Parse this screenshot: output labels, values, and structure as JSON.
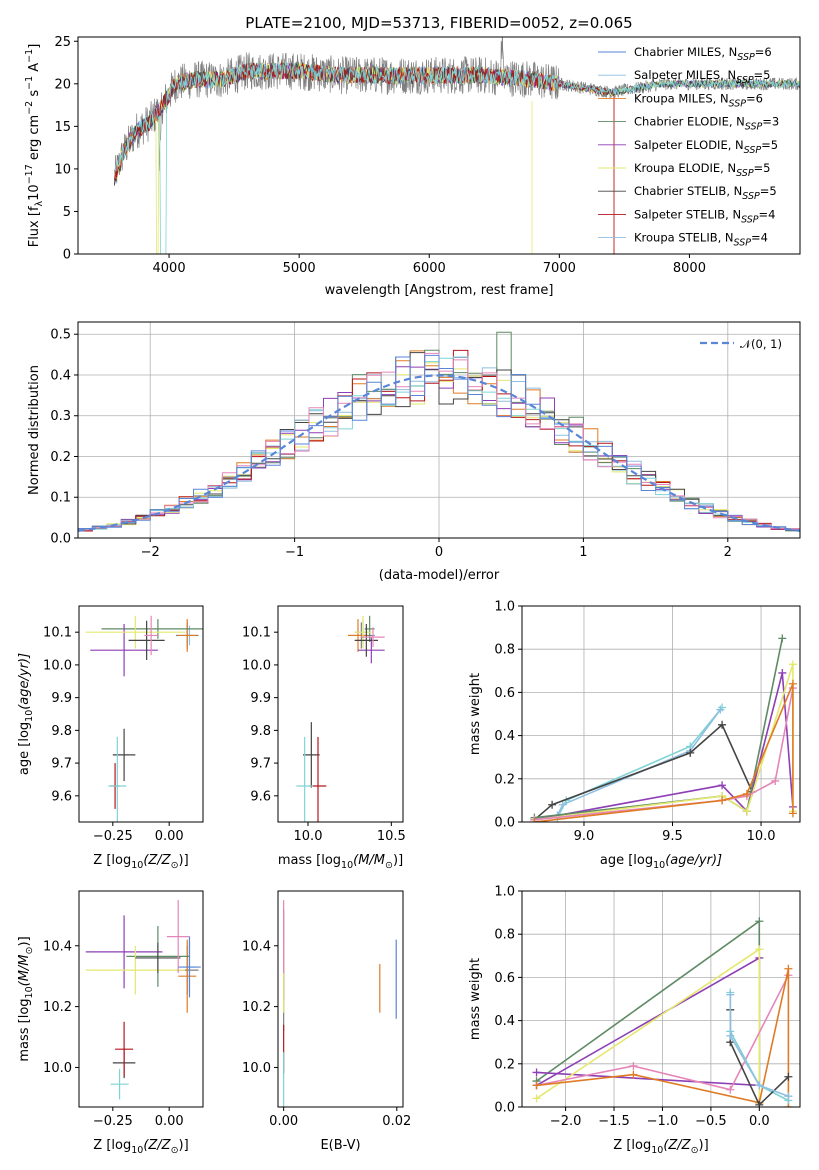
{
  "colors": [
    "#7f7f7f",
    "#8fbfe0",
    "#e07b25",
    "#5e8a64",
    "#8e3fb5",
    "#e5e86f",
    "#444444",
    "#b5171e",
    "#7fd3d6",
    "#e586b9",
    "#5a86d8"
  ],
  "chart_data": [
    {
      "id": "spectrum",
      "type": "line",
      "title": "PLATE=2100, MJD=53713, FIBERID=0052, z=0.065",
      "xlabel": "wavelength [Angstrom, rest frame]",
      "ylabel": "Flux [f",
      "ylabel_sub": "λ",
      "ylabel_mid": "10",
      "ylabel_sup1": "−17",
      "ylabel_rest": " erg cm",
      "ylabel_sup2": "−2",
      "ylabel_rest2": " s",
      "ylabel_sup3": "−1",
      "ylabel_rest3": " A",
      "ylabel_sup4": "−1",
      "ylabel_end": "]",
      "xlim": [
        3300,
        8850
      ],
      "ylim": [
        0,
        25.5
      ],
      "xticks": [
        4000,
        5000,
        6000,
        7000,
        8000
      ],
      "yticks": [
        0,
        5,
        10,
        15,
        20,
        25
      ],
      "grid": false,
      "legend_position": "upper right",
      "series": [
        {
          "name": "Chabrier MILES, N",
          "sub": "SSP",
          "eq": "=6"
        },
        {
          "name": "Salpeter MILES, N",
          "sub": "SSP",
          "eq": "=5"
        },
        {
          "name": "Kroupa MILES, N",
          "sub": "SSP",
          "eq": "=6"
        },
        {
          "name": "Chabrier ELODIE, N",
          "sub": "SSP",
          "eq": "=3"
        },
        {
          "name": "Salpeter ELODIE, N",
          "sub": "SSP",
          "eq": "=5"
        },
        {
          "name": "Kroupa ELODIE, N",
          "sub": "SSP",
          "eq": "=5"
        },
        {
          "name": "Chabrier STELIB, N",
          "sub": "SSP",
          "eq": "=5"
        },
        {
          "name": "Salpeter STELIB, N",
          "sub": "SSP",
          "eq": "=4"
        },
        {
          "name": "Kroupa STELIB, N",
          "sub": "SSP",
          "eq": "=4"
        }
      ],
      "continuum": {
        "x": [
          3580,
          3650,
          3750,
          3850,
          3950,
          4050,
          4200,
          4400,
          4600,
          4800,
          5000,
          5300,
          5600,
          6000,
          6400,
          6800,
          7000,
          7200,
          7400,
          7600,
          7800,
          8000,
          8200,
          8400,
          8600,
          8850
        ],
        "y": [
          9,
          12,
          14.5,
          15.5,
          17.5,
          20,
          20.5,
          20.5,
          21.5,
          21.5,
          21.5,
          21,
          21,
          21,
          21,
          20.5,
          20,
          19.5,
          19,
          19.5,
          20,
          20,
          20,
          20,
          20,
          20
        ]
      }
    },
    {
      "id": "residuals",
      "type": "histogram",
      "xlabel": "(data-model)/error",
      "ylabel": "Normed distribution",
      "xlim": [
        -2.5,
        2.5
      ],
      "ylim": [
        0,
        0.53
      ],
      "xticks": [
        -2,
        -1,
        0,
        1,
        2
      ],
      "xtick_labels": [
        "−2",
        "−1",
        "0",
        "1",
        "2"
      ],
      "yticks": [
        0.0,
        0.1,
        0.2,
        0.3,
        0.4,
        0.5
      ],
      "ytick_labels": [
        "0.0",
        "0.1",
        "0.2",
        "0.3",
        "0.4",
        "0.5"
      ],
      "grid": true,
      "legend_label": "𝒩(0, 1)",
      "legend_position": "upper right",
      "bin_edges_start": -2.5,
      "bin_width": 0.1
    },
    {
      "id": "age_vs_z",
      "type": "scatter",
      "xlabel": "Z [log",
      "xlabel_sub": "10",
      "xlabel_rest": "(Z/Z",
      "xlabel_sub2": "⊙",
      "xlabel_end": ")]",
      "ylabel": "age  [log",
      "ylabel_sub": "10",
      "ylabel_rest": "(age/yr)]",
      "xlim": [
        -0.4,
        0.15
      ],
      "ylim": [
        9.52,
        10.18
      ],
      "xticks": [
        -0.25,
        0.0
      ],
      "xtick_labels": [
        "−0.25",
        "0.00"
      ],
      "yticks": [
        9.6,
        9.7,
        9.8,
        9.9,
        10.0,
        10.1
      ],
      "ytick_labels": [
        "9.6",
        "9.7",
        "9.8",
        "9.9",
        "10.0",
        "10.1"
      ],
      "points": [
        {
          "x": 0.08,
          "y": 10.09,
          "xe": 0.05,
          "ye": 0.04,
          "c": 0
        },
        {
          "x": 0.09,
          "y": 10.09,
          "xe": 0.02,
          "ye": 0.03,
          "c": 1
        },
        {
          "x": 0.08,
          "y": 10.09,
          "xe": 0.04,
          "ye": 0.05,
          "c": 2
        },
        {
          "x": -0.05,
          "y": 10.11,
          "xe": 0.25,
          "ye": 0.03,
          "c": 3
        },
        {
          "x": -0.2,
          "y": 10.045,
          "xe": 0.15,
          "ye": 0.08,
          "c": 4
        },
        {
          "x": -0.15,
          "y": 10.1,
          "xe": 0.22,
          "ye": 0.05,
          "c": 5
        },
        {
          "x": -0.2,
          "y": 9.725,
          "xe": 0.05,
          "ye": 0.08,
          "c": 6
        },
        {
          "x": -0.24,
          "y": 9.63,
          "xe": 0.02,
          "ye": 0.07,
          "c": 7
        },
        {
          "x": -0.23,
          "y": 9.63,
          "xe": 0.04,
          "ye": 0.15,
          "c": 8
        },
        {
          "x": -0.1,
          "y": 10.075,
          "xe": 0.08,
          "ye": 0.06,
          "c": 6
        },
        {
          "x": -0.08,
          "y": 10.09,
          "xe": 0.03,
          "ye": 0.06,
          "c": 9
        }
      ]
    },
    {
      "id": "age_vs_mass",
      "type": "scatter",
      "xlabel": "mass [log",
      "xlabel_sub": "10",
      "xlabel_rest": "(M/M",
      "xlabel_sub2": "⊙",
      "xlabel_end": ")]",
      "xlim": [
        9.82,
        10.57
      ],
      "ylim": [
        9.52,
        10.18
      ],
      "xticks": [
        10.0,
        10.5
      ],
      "xtick_labels": [
        "10.0",
        "10.5"
      ],
      "yticks": [
        9.6,
        9.7,
        9.8,
        9.9,
        10.0,
        10.1
      ],
      "ytick_labels": [
        "9.6",
        "9.7",
        "9.8",
        "9.9",
        "10.0",
        "10.1"
      ],
      "points": [
        {
          "x": 10.32,
          "y": 10.09,
          "xe": 0.08,
          "ye": 0.04,
          "c": 0
        },
        {
          "x": 10.33,
          "y": 10.1,
          "xe": 0.05,
          "ye": 0.04,
          "c": 1
        },
        {
          "x": 10.3,
          "y": 10.09,
          "xe": 0.06,
          "ye": 0.05,
          "c": 2
        },
        {
          "x": 10.37,
          "y": 10.11,
          "xe": 0.03,
          "ye": 0.04,
          "c": 3
        },
        {
          "x": 10.38,
          "y": 10.045,
          "xe": 0.08,
          "ye": 0.04,
          "c": 4
        },
        {
          "x": 10.33,
          "y": 10.1,
          "xe": 0.05,
          "ye": 0.05,
          "c": 5
        },
        {
          "x": 10.02,
          "y": 9.725,
          "xe": 0.05,
          "ye": 0.1,
          "c": 6
        },
        {
          "x": 10.06,
          "y": 9.63,
          "xe": 0.05,
          "ye": 0.15,
          "c": 7
        },
        {
          "x": 9.98,
          "y": 9.63,
          "xe": 0.05,
          "ye": 0.15,
          "c": 8
        },
        {
          "x": 10.35,
          "y": 10.075,
          "xe": 0.07,
          "ye": 0.05,
          "c": 6
        },
        {
          "x": 10.39,
          "y": 10.085,
          "xe": 0.07,
          "ye": 0.03,
          "c": 9
        }
      ]
    },
    {
      "id": "weight_vs_age",
      "type": "line",
      "xlabel": "age  [log",
      "xlabel_sub": "10",
      "xlabel_rest": "(age/yr)]",
      "ylabel": "mass weight",
      "xlim": [
        8.65,
        10.22
      ],
      "ylim": [
        0,
        1.0
      ],
      "xticks": [
        9.0,
        9.5,
        10.0
      ],
      "xtick_labels": [
        "9.0",
        "9.5",
        "10.0"
      ],
      "yticks": [
        0.0,
        0.2,
        0.4,
        0.6,
        0.8,
        1.0
      ],
      "ytick_labels": [
        "0.0",
        "0.2",
        "0.4",
        "0.6",
        "0.8",
        "1.0"
      ],
      "grid": true,
      "series": [
        {
          "c": 8,
          "x": [
            8.85,
            8.9,
            9.6,
            9.78
          ],
          "y": [
            0.02,
            0.1,
            0.35,
            0.53
          ]
        },
        {
          "c": 1,
          "x": [
            8.85,
            8.88,
            9.6,
            9.77
          ],
          "y": [
            0.03,
            0.08,
            0.33,
            0.52
          ]
        },
        {
          "c": 6,
          "x": [
            8.72,
            8.82,
            9.6,
            9.78,
            9.95
          ],
          "y": [
            0.01,
            0.08,
            0.32,
            0.45,
            0.14
          ]
        },
        {
          "c": 4,
          "x": [
            8.72,
            9.78,
            9.92,
            10.12,
            10.18
          ],
          "y": [
            0.01,
            0.17,
            0.05,
            0.69,
            0.07
          ]
        },
        {
          "c": 3,
          "x": [
            8.72,
            9.78,
            9.92,
            10.12
          ],
          "y": [
            0.02,
            0.12,
            0.05,
            0.85
          ]
        },
        {
          "c": 5,
          "x": [
            8.72,
            9.78,
            9.92,
            10.18,
            10.18
          ],
          "y": [
            0.01,
            0.12,
            0.05,
            0.73,
            0.05
          ]
        },
        {
          "c": 9,
          "x": [
            8.72,
            9.78,
            9.92,
            10.08,
            10.18
          ],
          "y": [
            0.01,
            0.1,
            0.12,
            0.19,
            0.62
          ]
        },
        {
          "c": 2,
          "x": [
            8.72,
            9.78,
            9.92,
            10.18,
            10.18
          ],
          "y": [
            0.0,
            0.1,
            0.13,
            0.64,
            0.04
          ]
        }
      ]
    },
    {
      "id": "mass_vs_z",
      "type": "scatter",
      "xlabel": "Z [log",
      "xlabel_sub": "10",
      "xlabel_rest": "(Z/Z",
      "xlabel_sub2": "⊙",
      "xlabel_end": ")]",
      "ylabel": "mass [log",
      "ylabel_sub": "10",
      "ylabel_rest": "(M/M",
      "ylabel_sub2": "⊙",
      "ylabel_end": ")]",
      "xlim": [
        -0.4,
        0.15
      ],
      "ylim": [
        9.87,
        10.58
      ],
      "xticks": [
        -0.25,
        0.0
      ],
      "xtick_labels": [
        "−0.25",
        "0.00"
      ],
      "yticks": [
        10.0,
        10.2,
        10.4
      ],
      "ytick_labels": [
        "10.0",
        "10.2",
        "10.4"
      ],
      "points": [
        {
          "x": 0.08,
          "y": 10.32,
          "xe": 0.05,
          "ye": 0.08,
          "c": 0
        },
        {
          "x": 0.09,
          "y": 10.33,
          "xe": 0.03,
          "ye": 0.08,
          "c": 1
        },
        {
          "x": 0.08,
          "y": 10.3,
          "xe": 0.04,
          "ye": 0.12,
          "c": 2
        },
        {
          "x": -0.05,
          "y": 10.365,
          "xe": 0.14,
          "ye": 0.1,
          "c": 3
        },
        {
          "x": -0.2,
          "y": 10.38,
          "xe": 0.17,
          "ye": 0.12,
          "c": 4
        },
        {
          "x": -0.15,
          "y": 10.32,
          "xe": 0.22,
          "ye": 0.08,
          "c": 5
        },
        {
          "x": -0.2,
          "y": 10.015,
          "xe": 0.05,
          "ye": 0.05,
          "c": 6
        },
        {
          "x": -0.2,
          "y": 10.06,
          "xe": 0.04,
          "ye": 0.09,
          "c": 7
        },
        {
          "x": -0.22,
          "y": 9.945,
          "xe": 0.04,
          "ye": 0.05,
          "c": 8
        },
        {
          "x": -0.05,
          "y": 10.36,
          "xe": 0.1,
          "ye": 0.05,
          "c": 6
        },
        {
          "x": 0.04,
          "y": 10.43,
          "xe": 0.05,
          "ye": 0.12,
          "c": 9
        },
        {
          "x": 0.09,
          "y": 10.33,
          "xe": 0.05,
          "ye": 0.1,
          "c": 10
        }
      ]
    },
    {
      "id": "mass_vs_ebv",
      "type": "scatter",
      "xlabel": "E(B-V)",
      "xlim": [
        -0.001,
        0.0211
      ],
      "ylim": [
        9.87,
        10.58
      ],
      "xticks": [
        0.0,
        0.02
      ],
      "xtick_labels": [
        "0.00",
        "0.02"
      ],
      "yticks": [
        10.0,
        10.2,
        10.4
      ],
      "ytick_labels": [
        "10.0",
        "10.2",
        "10.4"
      ],
      "points": [
        {
          "x": 0.0,
          "y": 10.32,
          "xe": 0,
          "ye": 0.2,
          "c": 0
        },
        {
          "x": 0.0,
          "y": 10.32,
          "xe": 0,
          "ye": 0.1,
          "c": 4
        },
        {
          "x": 0.0,
          "y": 10.3,
          "xe": 0,
          "ye": 0.12,
          "c": 5
        },
        {
          "x": 0.0,
          "y": 10.06,
          "xe": 0,
          "ye": 0.08,
          "c": 7
        },
        {
          "x": 0.0,
          "y": 9.95,
          "xe": 0,
          "ye": 0.1,
          "c": 8
        },
        {
          "x": 0.0,
          "y": 10.43,
          "xe": 0,
          "ye": 0.12,
          "c": 9
        },
        {
          "x": 0.017,
          "y": 10.26,
          "xe": 0,
          "ye": 0.08,
          "c": 2
        },
        {
          "x": 0.0199,
          "y": 10.29,
          "xe": 0,
          "ye": 0.13,
          "c": 10
        }
      ]
    },
    {
      "id": "weight_vs_z",
      "type": "line",
      "xlabel": "Z [log",
      "xlabel_sub": "10",
      "xlabel_rest": "(Z/Z",
      "xlabel_sub2": "⊙",
      "xlabel_end": ")]",
      "ylabel": "mass weight",
      "xlim": [
        -2.45,
        0.42
      ],
      "ylim": [
        0,
        1.0
      ],
      "xticks": [
        -2.0,
        -1.5,
        -1.0,
        -0.5,
        0.0
      ],
      "xtick_labels": [
        "−2.0",
        "−1.5",
        "−1.0",
        "−0.5",
        "0.0"
      ],
      "yticks": [
        0.0,
        0.2,
        0.4,
        0.6,
        0.8,
        1.0
      ],
      "ytick_labels": [
        "0.0",
        "0.2",
        "0.4",
        "0.6",
        "0.8",
        "1.0"
      ],
      "grid": true,
      "series": [
        {
          "c": 3,
          "x": [
            -2.3,
            0.0,
            0.0
          ],
          "y": [
            0.12,
            0.86,
            0.1
          ]
        },
        {
          "c": 4,
          "x": [
            -2.3,
            0.0,
            0.0,
            -2.3
          ],
          "y": [
            0.1,
            0.69,
            0.1,
            0.16
          ]
        },
        {
          "c": 5,
          "x": [
            -2.3,
            0.0,
            0.0
          ],
          "y": [
            0.04,
            0.73,
            0.02
          ]
        },
        {
          "c": 9,
          "x": [
            -2.3,
            -1.3,
            -0.3,
            0.3
          ],
          "y": [
            0.1,
            0.19,
            0.08,
            0.61
          ]
        },
        {
          "c": 2,
          "x": [
            -2.3,
            -1.3,
            0.0,
            0.3,
            0.3
          ],
          "y": [
            0.1,
            0.15,
            0.02,
            0.64,
            0.0
          ]
        },
        {
          "c": 8,
          "x": [
            -0.3,
            -0.3,
            0.0,
            0.3
          ],
          "y": [
            0.53,
            0.35,
            0.1,
            0.03
          ]
        },
        {
          "c": 6,
          "x": [
            -0.3,
            -0.3,
            0.0,
            0.3
          ],
          "y": [
            0.45,
            0.3,
            0.01,
            0.14
          ]
        },
        {
          "c": 1,
          "x": [
            -0.3,
            -0.3,
            0.0,
            0.3
          ],
          "y": [
            0.52,
            0.33,
            0.1,
            0.05
          ]
        }
      ]
    }
  ]
}
